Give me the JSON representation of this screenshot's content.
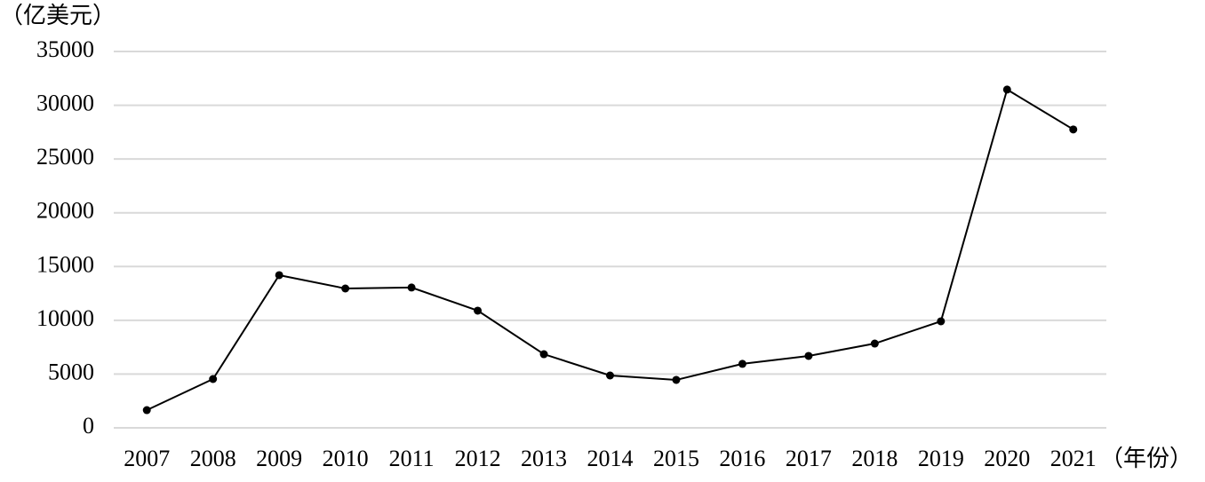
{
  "chart_data": {
    "type": "line",
    "y_label": "（亿美元）",
    "x_label": "（年份）",
    "categories": [
      "2007",
      "2008",
      "2009",
      "2010",
      "2011",
      "2012",
      "2013",
      "2014",
      "2015",
      "2016",
      "2017",
      "2018",
      "2019",
      "2020",
      "2021"
    ],
    "values": [
      1650,
      4540,
      14200,
      12960,
      13050,
      10900,
      6850,
      4870,
      4460,
      5950,
      6690,
      7840,
      9910,
      31460,
      27750
    ],
    "color": "#000000",
    "ylim": [
      0,
      35000
    ],
    "yticks": [
      0,
      5000,
      10000,
      15000,
      20000,
      25000,
      30000,
      35000
    ],
    "grid": true
  }
}
